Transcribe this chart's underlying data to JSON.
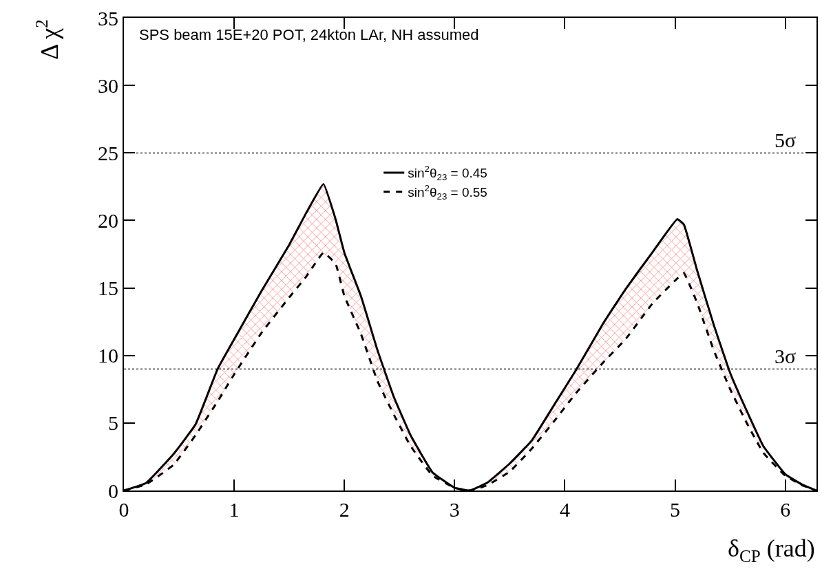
{
  "chart_data": {
    "type": "line",
    "xlabel": "δ$_{CP}$ (rad)",
    "ylabel": "Δ χ$^{2}$",
    "annotations": [
      "SPS beam 15E+20 POT, 24kton LAr, NH assumed"
    ],
    "x": [
      0,
      0.2,
      0.45,
      0.65,
      0.85,
      1.0,
      1.25,
      1.5,
      1.65,
      1.81,
      1.92,
      2.0,
      2.15,
      2.3,
      2.45,
      2.6,
      2.8,
      3.0,
      3.14,
      3.3,
      3.5,
      3.7,
      3.9,
      4.1,
      4.35,
      4.55,
      4.8,
      5.02,
      5.08,
      5.2,
      5.35,
      5.5,
      5.65,
      5.8,
      6.0,
      6.15,
      6.28
    ],
    "series": [
      {
        "name": "sin$^{2}$θ$_{23}$ = 0.45",
        "color": "#000000",
        "line_style": "solid",
        "values": [
          0,
          0.55,
          2.7,
          4.9,
          9.0,
          11.2,
          14.8,
          18.2,
          20.5,
          22.7,
          20.1,
          17.6,
          14.4,
          10.4,
          6.9,
          4.1,
          1.34,
          0.2,
          0,
          0.6,
          2.0,
          3.7,
          6.3,
          8.9,
          12.4,
          14.9,
          17.7,
          20.1,
          19.7,
          16.3,
          12.3,
          8.7,
          5.9,
          3.3,
          1.2,
          0.45,
          0
        ],
        "lower": [
          0,
          0.45,
          1.9,
          4.1,
          6.6,
          8.6,
          11.7,
          14.3,
          15.8,
          17.6,
          16.8,
          14.4,
          11.6,
          8.1,
          5.6,
          3.3,
          1.1,
          0.2,
          0,
          0.4,
          1.4,
          3.1,
          5.1,
          7.2,
          9.5,
          11.2,
          13.9,
          15.7,
          16.1,
          13.9,
          10.4,
          7.5,
          5.0,
          2.8,
          1.1,
          0.4,
          0
        ],
        "upper": [
          0,
          0.55,
          2.7,
          4.9,
          9.0,
          11.2,
          14.8,
          18.2,
          20.5,
          22.7,
          20.1,
          17.6,
          14.4,
          10.4,
          6.9,
          4.1,
          1.34,
          0.2,
          0,
          0.6,
          2.0,
          3.7,
          6.3,
          8.9,
          12.4,
          14.9,
          17.7,
          20.1,
          19.7,
          16.3,
          12.3,
          8.7,
          5.9,
          3.3,
          1.2,
          0.45,
          0
        ]
      },
      {
        "name": "sin$^{2}$θ$_{23}$ = 0.55",
        "color": "#000000",
        "line_style": "dashed",
        "values": [
          0,
          0.45,
          1.9,
          4.1,
          6.6,
          8.6,
          11.7,
          14.3,
          15.8,
          17.6,
          16.8,
          14.4,
          11.6,
          8.1,
          5.6,
          3.3,
          1.1,
          0.2,
          0,
          0.4,
          1.4,
          3.1,
          5.1,
          7.2,
          9.5,
          11.2,
          13.9,
          15.7,
          16.1,
          13.9,
          10.4,
          7.5,
          5.0,
          2.8,
          1.1,
          0.4,
          0
        ]
      }
    ],
    "ref_lines": [
      {
        "axis": "y",
        "value": 9,
        "label": "3σ",
        "color": "#000000",
        "line_style": "dotted"
      },
      {
        "axis": "y",
        "value": 25,
        "label": "5σ",
        "color": "#000000",
        "line_style": "dotted"
      }
    ],
    "xlim": [
      0,
      6.283
    ],
    "ylim": [
      0,
      35
    ],
    "xticks": [
      0,
      1,
      2,
      3,
      4,
      5,
      6
    ],
    "yticks": [
      0,
      5,
      10,
      15,
      20,
      25,
      30,
      35
    ],
    "legend": "top",
    "marker": "none"
  }
}
